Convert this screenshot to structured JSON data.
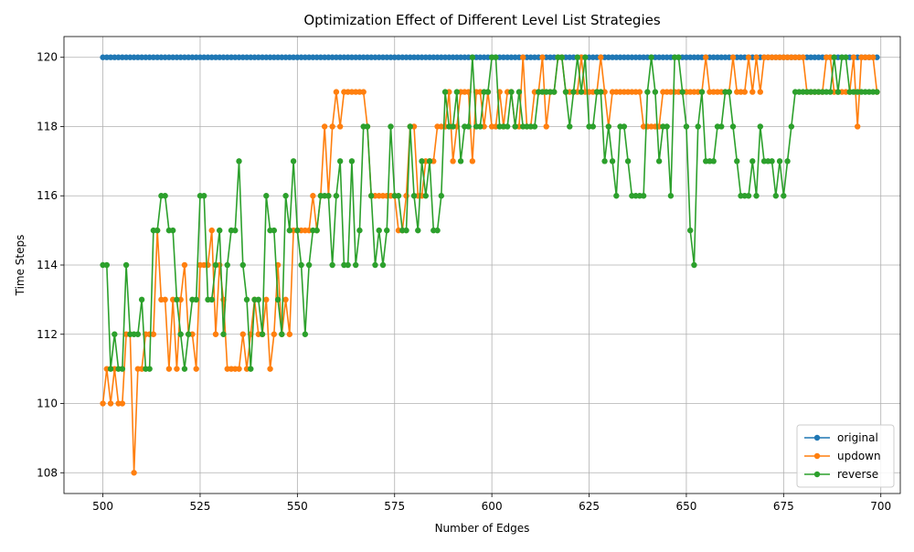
{
  "chart_data": {
    "type": "line",
    "title": "Optimization Effect of Different Level List Strategies",
    "xlabel": "Number of Edges",
    "ylabel": "Time Steps",
    "xlim": [
      490,
      705
    ],
    "ylim": [
      107.4,
      120.6
    ],
    "xticks": [
      500,
      525,
      550,
      575,
      600,
      625,
      650,
      675,
      700
    ],
    "yticks": [
      108,
      110,
      112,
      114,
      116,
      118,
      120
    ],
    "grid": true,
    "legend_position": "lower-right",
    "x": [
      500,
      501,
      502,
      503,
      504,
      505,
      506,
      507,
      508,
      509,
      510,
      511,
      512,
      513,
      514,
      515,
      516,
      517,
      518,
      519,
      520,
      521,
      522,
      523,
      524,
      525,
      526,
      527,
      528,
      529,
      530,
      531,
      532,
      533,
      534,
      535,
      536,
      537,
      538,
      539,
      540,
      541,
      542,
      543,
      544,
      545,
      546,
      547,
      548,
      549,
      550,
      551,
      552,
      553,
      554,
      555,
      556,
      557,
      558,
      559,
      560,
      561,
      562,
      563,
      564,
      565,
      566,
      567,
      568,
      569,
      570,
      571,
      572,
      573,
      574,
      575,
      576,
      577,
      578,
      579,
      580,
      581,
      582,
      583,
      584,
      585,
      586,
      587,
      588,
      589,
      590,
      591,
      592,
      593,
      594,
      595,
      596,
      597,
      598,
      599,
      600,
      601,
      602,
      603,
      604,
      605,
      606,
      607,
      608,
      609,
      610,
      611,
      612,
      613,
      614,
      615,
      616,
      617,
      618,
      619,
      620,
      621,
      622,
      623,
      624,
      625,
      626,
      627,
      628,
      629,
      630,
      631,
      632,
      633,
      634,
      635,
      636,
      637,
      638,
      639,
      640,
      641,
      642,
      643,
      644,
      645,
      646,
      647,
      648,
      649,
      650,
      651,
      652,
      653,
      654,
      655,
      656,
      657,
      658,
      659,
      660,
      661,
      662,
      663,
      664,
      665,
      666,
      667,
      668,
      669,
      670,
      671,
      672,
      673,
      674,
      675,
      676,
      677,
      678,
      679,
      680,
      681,
      682,
      683,
      684,
      685,
      686,
      687,
      688,
      689,
      690,
      691,
      692,
      693,
      694,
      695,
      696,
      697,
      698,
      699
    ],
    "series": [
      {
        "name": "original",
        "color": "#1f77b4",
        "values": [
          120,
          120,
          120,
          120,
          120,
          120,
          120,
          120,
          120,
          120,
          120,
          120,
          120,
          120,
          120,
          120,
          120,
          120,
          120,
          120,
          120,
          120,
          120,
          120,
          120,
          120,
          120,
          120,
          120,
          120,
          120,
          120,
          120,
          120,
          120,
          120,
          120,
          120,
          120,
          120,
          120,
          120,
          120,
          120,
          120,
          120,
          120,
          120,
          120,
          120,
          120,
          120,
          120,
          120,
          120,
          120,
          120,
          120,
          120,
          120,
          120,
          120,
          120,
          120,
          120,
          120,
          120,
          120,
          120,
          120,
          120,
          120,
          120,
          120,
          120,
          120,
          120,
          120,
          120,
          120,
          120,
          120,
          120,
          120,
          120,
          120,
          120,
          120,
          120,
          120,
          120,
          120,
          120,
          120,
          120,
          120,
          120,
          120,
          120,
          120,
          120,
          120,
          120,
          120,
          120,
          120,
          120,
          120,
          120,
          120,
          120,
          120,
          120,
          120,
          120,
          120,
          120,
          120,
          120,
          120,
          120,
          120,
          120,
          120,
          120,
          120,
          120,
          120,
          120,
          120,
          120,
          120,
          120,
          120,
          120,
          120,
          120,
          120,
          120,
          120,
          120,
          120,
          120,
          120,
          120,
          120,
          120,
          120,
          120,
          120,
          120,
          120,
          120,
          120,
          120,
          120,
          120,
          120,
          120,
          120,
          120,
          120,
          120,
          120,
          120,
          120,
          120,
          120,
          120,
          120,
          120,
          120,
          120,
          120,
          120,
          120,
          120,
          120,
          120,
          120,
          120,
          120,
          120,
          120,
          120,
          120,
          120,
          120,
          120,
          120,
          120,
          120,
          120,
          120,
          120,
          120,
          120,
          120,
          120,
          120
        ]
      },
      {
        "name": "updown",
        "color": "#ff7f0e",
        "values": [
          110,
          111,
          110,
          111,
          110,
          110,
          112,
          112,
          108,
          111,
          111,
          112,
          112,
          112,
          115,
          113,
          113,
          111,
          113,
          111,
          113,
          114,
          112,
          112,
          111,
          114,
          114,
          114,
          115,
          112,
          114,
          113,
          111,
          111,
          111,
          111,
          112,
          111,
          112,
          113,
          112,
          112,
          113,
          111,
          112,
          114,
          112,
          113,
          112,
          115,
          115,
          115,
          115,
          115,
          116,
          115,
          116,
          118,
          116,
          118,
          119,
          118,
          119,
          119,
          119,
          119,
          119,
          119,
          118,
          116,
          116,
          116,
          116,
          116,
          116,
          116,
          115,
          115,
          116,
          118,
          118,
          116,
          116,
          117,
          117,
          117,
          118,
          118,
          118,
          119,
          117,
          118,
          119,
          119,
          119,
          117,
          119,
          119,
          118,
          119,
          118,
          118,
          119,
          118,
          119,
          119,
          118,
          118,
          120,
          118,
          118,
          119,
          119,
          120,
          118,
          119,
          119,
          120,
          120,
          119,
          119,
          119,
          119,
          120,
          119,
          119,
          119,
          119,
          120,
          119,
          118,
          119,
          119,
          119,
          119,
          119,
          119,
          119,
          119,
          118,
          118,
          118,
          118,
          118,
          119,
          119,
          119,
          119,
          119,
          119,
          119,
          119,
          119,
          119,
          119,
          120,
          119,
          119,
          119,
          119,
          119,
          119,
          120,
          119,
          119,
          119,
          120,
          119,
          120,
          119,
          120,
          120,
          120,
          120,
          120,
          120,
          120,
          120,
          120,
          120,
          120,
          119,
          119,
          119,
          119,
          119,
          120,
          120,
          119,
          119,
          119,
          119,
          119,
          120,
          118,
          120,
          120,
          120,
          120,
          119
        ]
      },
      {
        "name": "reverse",
        "color": "#2ca02c",
        "values": [
          114,
          114,
          111,
          112,
          111,
          111,
          114,
          112,
          112,
          112,
          113,
          111,
          111,
          115,
          115,
          116,
          116,
          115,
          115,
          113,
          112,
          111,
          112,
          113,
          113,
          116,
          116,
          113,
          113,
          114,
          115,
          112,
          114,
          115,
          115,
          117,
          114,
          113,
          111,
          113,
          113,
          112,
          116,
          115,
          115,
          113,
          112,
          116,
          115,
          117,
          115,
          114,
          112,
          114,
          115,
          115,
          116,
          116,
          116,
          114,
          116,
          117,
          114,
          114,
          117,
          114,
          115,
          118,
          118,
          116,
          114,
          115,
          114,
          115,
          118,
          116,
          116,
          115,
          115,
          118,
          116,
          115,
          117,
          116,
          117,
          115,
          115,
          116,
          119,
          118,
          118,
          119,
          117,
          118,
          118,
          120,
          118,
          118,
          119,
          119,
          120,
          120,
          118,
          118,
          118,
          119,
          118,
          119,
          118,
          118,
          118,
          118,
          119,
          119,
          119,
          119,
          119,
          120,
          120,
          119,
          118,
          119,
          120,
          119,
          120,
          118,
          118,
          119,
          119,
          117,
          118,
          117,
          116,
          118,
          118,
          117,
          116,
          116,
          116,
          116,
          119,
          120,
          119,
          117,
          118,
          118,
          116,
          120,
          120,
          119,
          118,
          115,
          114,
          118,
          119,
          117,
          117,
          117,
          118,
          118,
          119,
          119,
          118,
          117,
          116,
          116,
          116,
          117,
          116,
          118,
          117,
          117,
          117,
          116,
          117,
          116,
          117,
          118,
          119,
          119,
          119,
          119,
          119,
          119,
          119,
          119,
          119,
          119,
          120,
          119,
          120,
          120,
          119,
          119,
          119,
          119,
          119,
          119,
          119,
          119
        ]
      }
    ]
  }
}
